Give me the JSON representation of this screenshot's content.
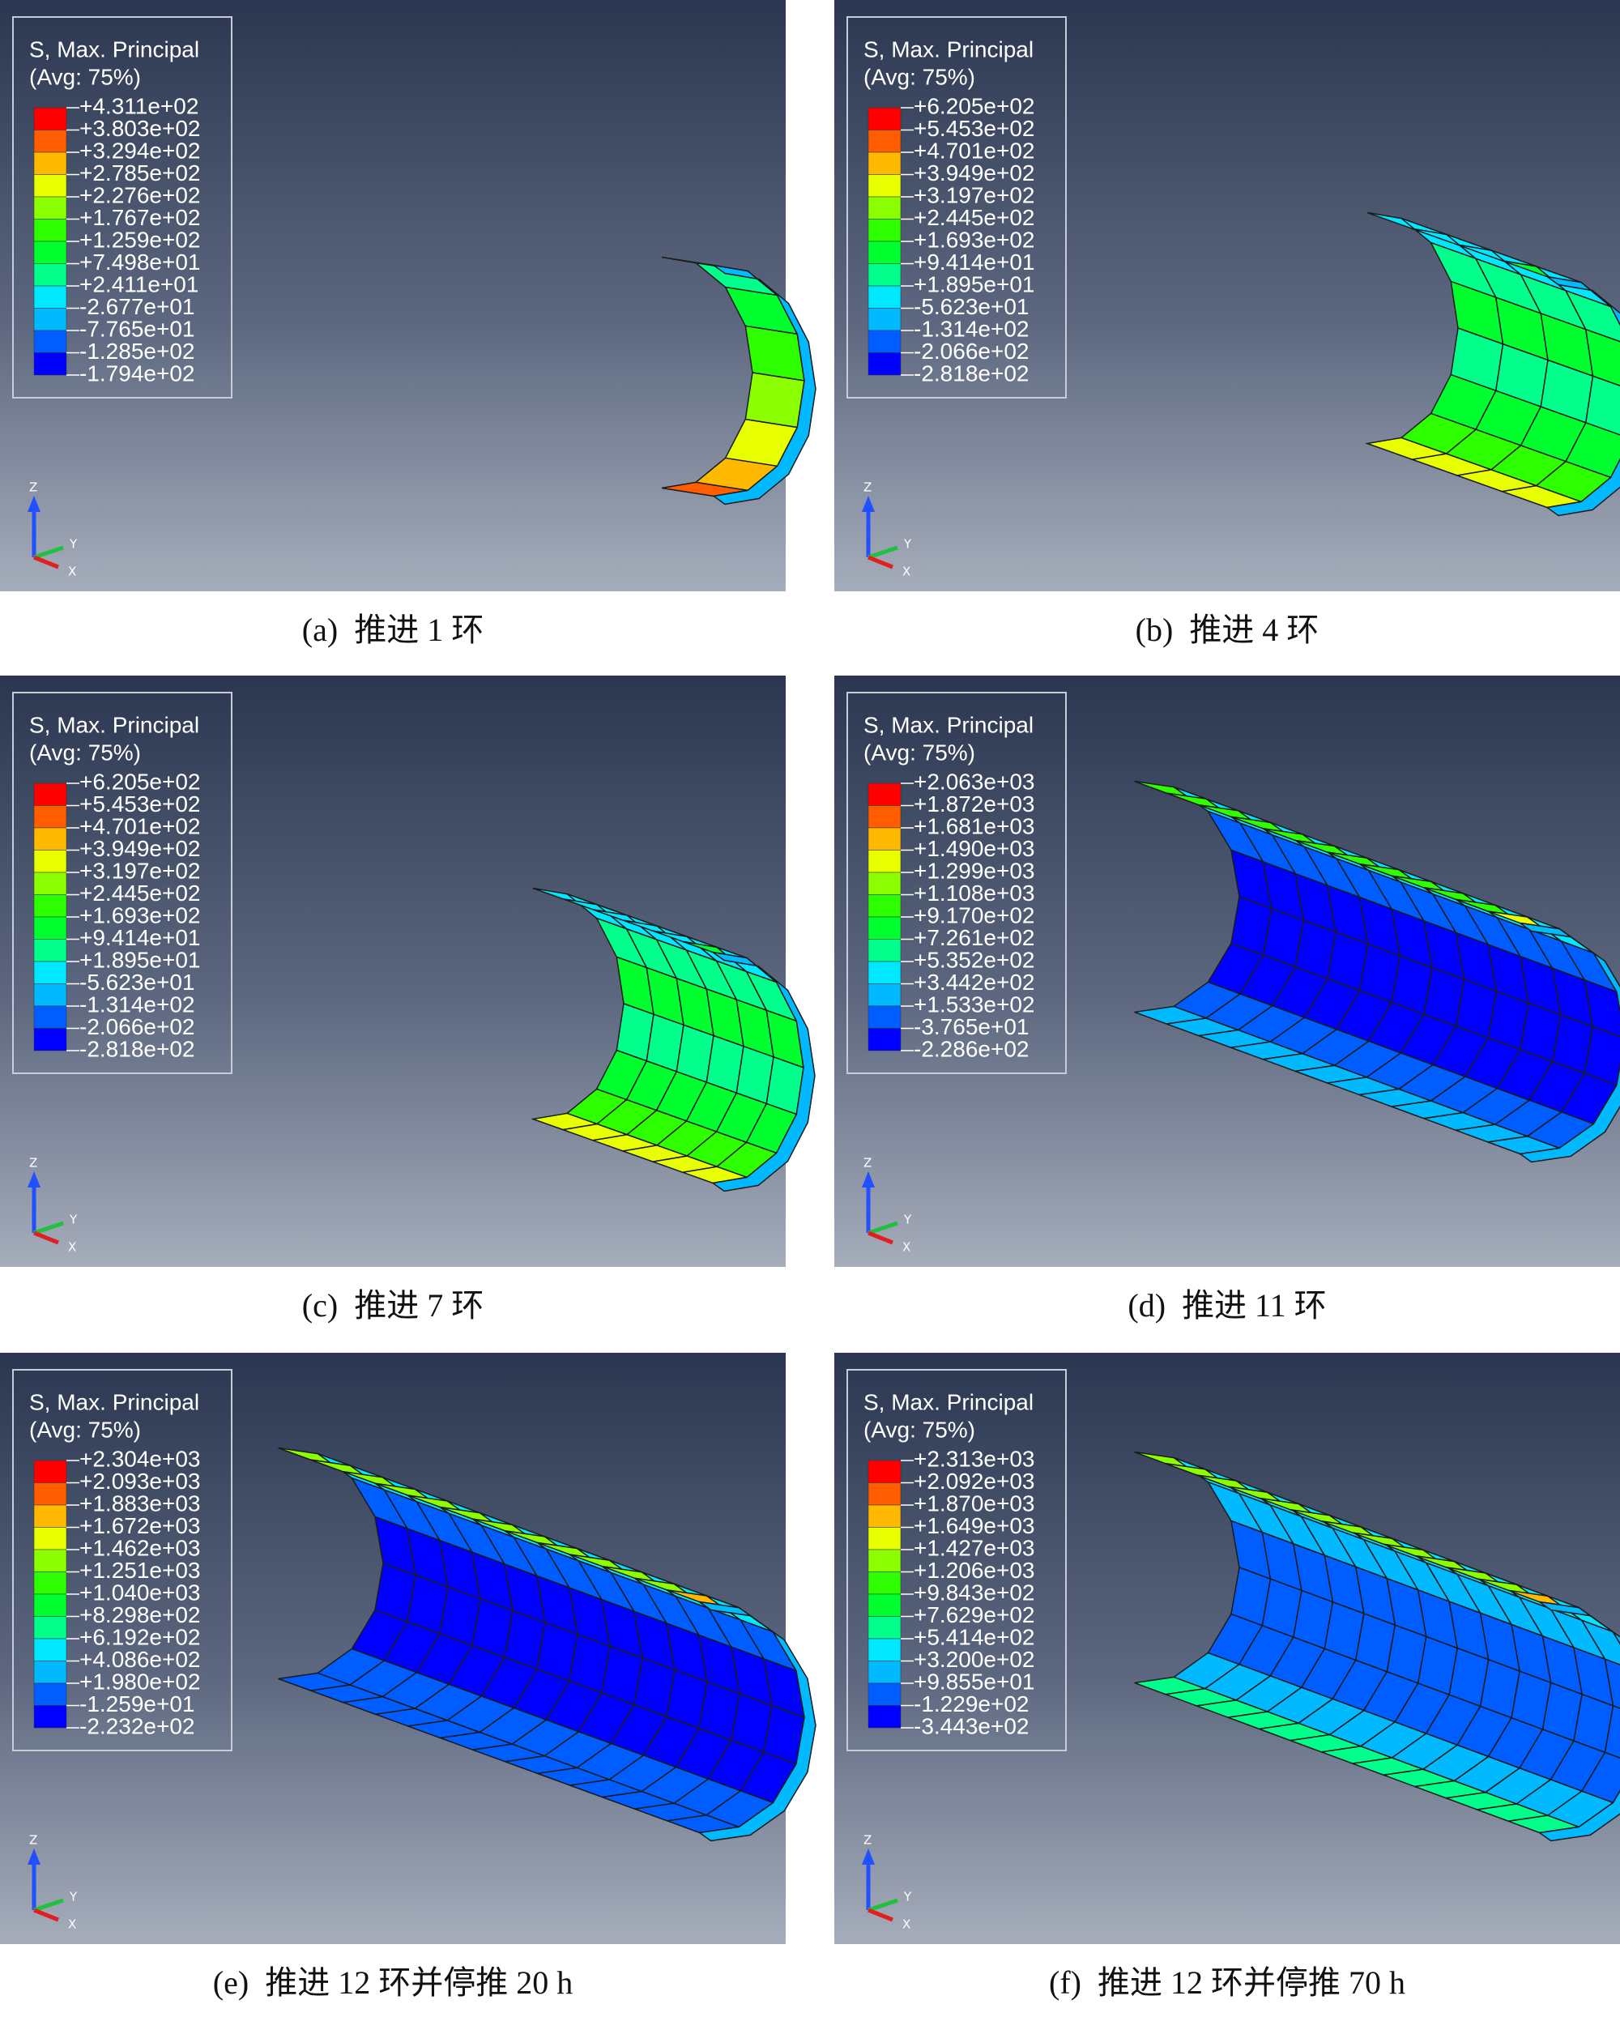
{
  "legend_title": "S, Max. Principal",
  "legend_subtitle": "(Avg: 75%)",
  "legend_colors": [
    "#ff0000",
    "#ff5d00",
    "#ffb900",
    "#e8ff00",
    "#8bff00",
    "#2eff00",
    "#00ff2e",
    "#00ff8b",
    "#00e8ff",
    "#00b9ff",
    "#005dff",
    "#0000ff"
  ],
  "triad": {
    "z": "Z",
    "y": "Y",
    "x": "X"
  },
  "panels": [
    {
      "caption": "(a)  推进 1 环",
      "legend": [
        "+4.311e+02",
        "+3.803e+02",
        "+3.294e+02",
        "+2.785e+02",
        "+2.276e+02",
        "+1.767e+02",
        "+1.259e+02",
        "+7.498e+01",
        "+2.411e+01",
        "-2.677e+01",
        "-7.765e+01",
        "-1.285e+02",
        "-1.794e+02"
      ]
    },
    {
      "caption": "(b)  推进 4 环",
      "legend": [
        "+6.205e+02",
        "+5.453e+02",
        "+4.701e+02",
        "+3.949e+02",
        "+3.197e+02",
        "+2.445e+02",
        "+1.693e+02",
        "+9.414e+01",
        "+1.895e+01",
        "-5.623e+01",
        "-1.314e+02",
        "-2.066e+02",
        "-2.818e+02"
      ]
    },
    {
      "caption": "(c)  推进 7 环",
      "legend": [
        "+6.205e+02",
        "+5.453e+02",
        "+4.701e+02",
        "+3.949e+02",
        "+3.197e+02",
        "+2.445e+02",
        "+1.693e+02",
        "+9.414e+01",
        "+1.895e+01",
        "-5.623e+01",
        "-1.314e+02",
        "-2.066e+02",
        "-2.818e+02"
      ]
    },
    {
      "caption": "(d)  推进 11 环",
      "legend": [
        "+2.063e+03",
        "+1.872e+03",
        "+1.681e+03",
        "+1.490e+03",
        "+1.299e+03",
        "+1.108e+03",
        "+9.170e+02",
        "+7.261e+02",
        "+5.352e+02",
        "+3.442e+02",
        "+1.533e+02",
        "-3.765e+01",
        "-2.286e+02"
      ]
    },
    {
      "caption": "(e)  推进 12 环并停推 20 h",
      "legend": [
        "+2.304e+03",
        "+2.093e+03",
        "+1.883e+03",
        "+1.672e+03",
        "+1.462e+03",
        "+1.251e+03",
        "+1.040e+03",
        "+8.298e+02",
        "+6.192e+02",
        "+4.086e+02",
        "+1.980e+02",
        "-1.259e+01",
        "-2.232e+02"
      ]
    },
    {
      "caption": "(f)  推进 12 环并停推 70 h",
      "legend": [
        "+2.313e+03",
        "+2.092e+03",
        "+1.870e+03",
        "+1.649e+03",
        "+1.427e+03",
        "+1.206e+03",
        "+9.843e+02",
        "+7.629e+02",
        "+5.414e+02",
        "+3.200e+02",
        "+9.855e+01",
        "-1.229e+02",
        "-3.443e+02"
      ]
    }
  ]
}
